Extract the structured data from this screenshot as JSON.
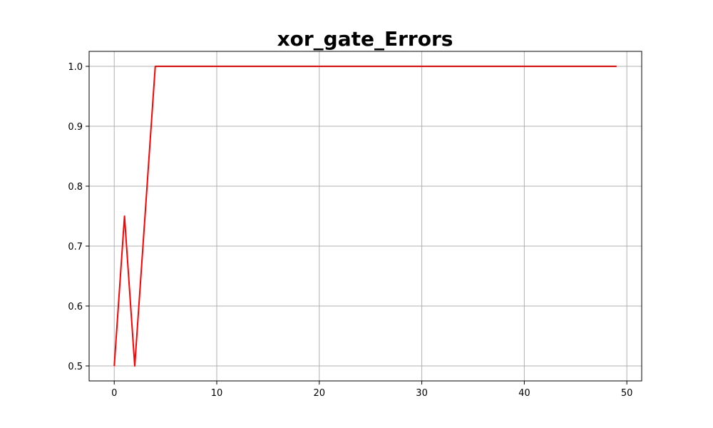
{
  "chart_data": {
    "type": "line",
    "title": "xor_gate_Errors",
    "xlabel": "",
    "ylabel": "",
    "xlim": [
      -2.45,
      51.45
    ],
    "ylim": [
      0.475,
      1.025
    ],
    "x_ticks": [
      0,
      10,
      20,
      30,
      40,
      50
    ],
    "y_ticks": [
      0.5,
      0.6,
      0.7,
      0.8,
      0.9,
      1.0
    ],
    "grid": true,
    "legend": "none",
    "series": [
      {
        "color": "#ff0000",
        "x": [
          0,
          1,
          2,
          3,
          4,
          5,
          6,
          7,
          8,
          9,
          10,
          11,
          12,
          13,
          14,
          15,
          16,
          17,
          18,
          19,
          20,
          21,
          22,
          23,
          24,
          25,
          26,
          27,
          28,
          29,
          30,
          31,
          32,
          33,
          34,
          35,
          36,
          37,
          38,
          39,
          40,
          41,
          42,
          43,
          44,
          45,
          46,
          47,
          48,
          49
        ],
        "y": [
          0.5,
          0.75,
          0.5,
          0.75,
          1.0,
          1.0,
          1.0,
          1.0,
          1.0,
          1.0,
          1.0,
          1.0,
          1.0,
          1.0,
          1.0,
          1.0,
          1.0,
          1.0,
          1.0,
          1.0,
          1.0,
          1.0,
          1.0,
          1.0,
          1.0,
          1.0,
          1.0,
          1.0,
          1.0,
          1.0,
          1.0,
          1.0,
          1.0,
          1.0,
          1.0,
          1.0,
          1.0,
          1.0,
          1.0,
          1.0,
          1.0,
          1.0,
          1.0,
          1.0,
          1.0,
          1.0,
          1.0,
          1.0,
          1.0,
          1.0
        ]
      }
    ]
  }
}
